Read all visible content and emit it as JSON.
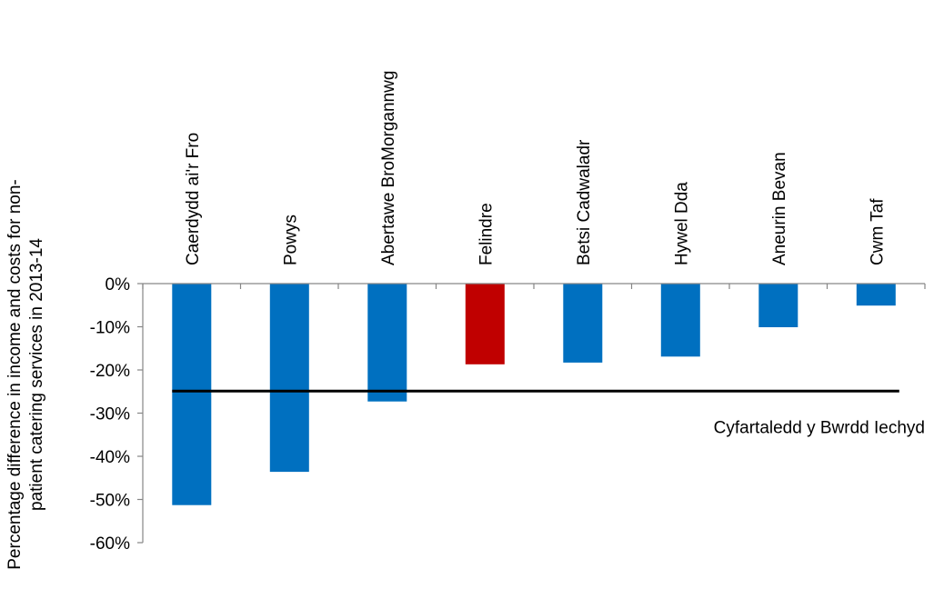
{
  "chart_data": {
    "type": "bar",
    "categories": [
      "Caerdydd ai'r Fro",
      "Powys",
      "Abertawe BroMorgannwg",
      "Felindre",
      "Betsi Cadwaladr",
      "Hywel Dda",
      "Aneurin Bevan",
      "Cwm Taf"
    ],
    "values": [
      -51.3,
      -43.6,
      -27.3,
      -18.7,
      -18.3,
      -16.9,
      -10.1,
      -5.1
    ],
    "bar_colors": [
      "#0070C0",
      "#0070C0",
      "#0070C0",
      "#C00000",
      "#0070C0",
      "#0070C0",
      "#0070C0",
      "#0070C0"
    ],
    "ylabel_lines": [
      "Percentage difference in income and costs for non-",
      "patient catering services in 2013-14"
    ],
    "ylim": [
      -60,
      0
    ],
    "yticks": [
      0,
      -10,
      -20,
      -30,
      -40,
      -50,
      -60
    ],
    "ytick_labels": [
      "0%",
      "-10%",
      "-20%",
      "-30%",
      "-40%",
      "-50%",
      "-60%"
    ],
    "average_line": {
      "value": -24.9,
      "label": "Cyfartaledd y Bwrdd Iechyd",
      "color": "#000000"
    },
    "grid": false,
    "legend": "none"
  }
}
